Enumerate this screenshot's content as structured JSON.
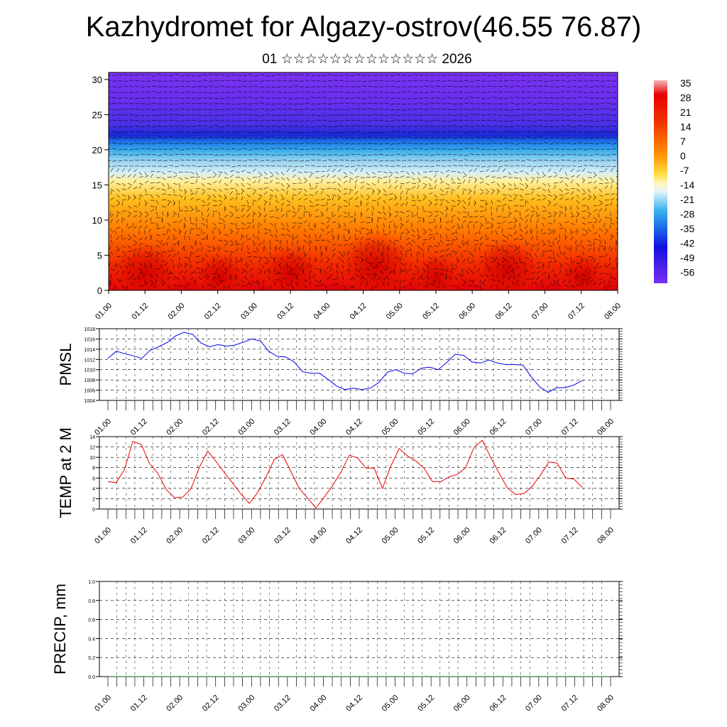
{
  "title": "Kazhydromet for Algazy-ostrov(46.55 76.87)",
  "subtitle": "01 ☆☆☆☆☆☆☆☆☆☆☆☆☆ 2026",
  "time_labels": [
    "01.00",
    "01.12",
    "02.00",
    "02.12",
    "03.00",
    "03.12",
    "04.00",
    "04.12",
    "05.00",
    "05.12",
    "06.00",
    "06.12",
    "07.00",
    "07.12",
    "08.00"
  ],
  "colors": {
    "pmsl_line": "#0000ee",
    "temp_line": "#ee0000",
    "precip_line": "#006400",
    "grid": "#000000"
  },
  "chart_data": [
    {
      "type": "heatmap",
      "name": "upper-air temperature and wind cross-section",
      "ylim": [
        0,
        31
      ],
      "y_ticks": [
        "0",
        "5",
        "10",
        "15",
        "20",
        "25",
        "30"
      ],
      "colorbar_labels": [
        "35",
        "28",
        "21",
        "14",
        "7",
        "0",
        "-7",
        "-14",
        "-21",
        "-28",
        "-35",
        "-42",
        "-49",
        "-56"
      ],
      "colorbar_range": [
        -63,
        38
      ],
      "x_categories": [
        "01.00",
        "01.12",
        "02.00",
        "02.12",
        "03.00",
        "03.12",
        "04.00",
        "04.12",
        "05.00",
        "05.12",
        "06.00",
        "06.12",
        "07.00",
        "07.12",
        "08.00"
      ]
    },
    {
      "type": "line",
      "ylabel": "PMSL",
      "ylim": [
        1004,
        1018
      ],
      "y_ticks": [
        "1004",
        "1006",
        "1008",
        "1010",
        "1012",
        "1014",
        "1016",
        "1018"
      ],
      "series": [
        {
          "name": "PMSL",
          "values": [
            1012.2,
            1013.6,
            1013.1,
            1012.7,
            1012.2,
            1013.8,
            1014.5,
            1015.3,
            1016.6,
            1017.3,
            1016.9,
            1015.2,
            1014.5,
            1014.9,
            1014.6,
            1014.8,
            1015.4,
            1016.0,
            1015.6,
            1013.6,
            1012.6,
            1012.5,
            1011.5,
            1009.6,
            1009.3,
            1009.3,
            1008.1,
            1006.8,
            1006.1,
            1006.4,
            1006.1,
            1006.4,
            1007.5,
            1009.5,
            1010.0,
            1009.3,
            1009.2,
            1010.3,
            1010.5,
            1010.0,
            1011.4,
            1013.0,
            1012.8,
            1011.5,
            1011.3,
            1011.9,
            1011.3,
            1011.0,
            1011.0,
            1010.9,
            1008.6,
            1006.6,
            1005.6,
            1006.5,
            1006.5,
            1007.0,
            1007.9
          ]
        }
      ]
    },
    {
      "type": "line",
      "ylabel": "TEMP at 2 M",
      "ylim": [
        0,
        14
      ],
      "y_ticks": [
        "0",
        "2",
        "4",
        "6",
        "8",
        "10",
        "12",
        "14"
      ],
      "series": [
        {
          "name": "TEMP at 2 M",
          "values": [
            5.3,
            5.1,
            7.7,
            13.1,
            12.5,
            8.8,
            6.9,
            3.8,
            2.2,
            2.3,
            4.0,
            8.1,
            11.2,
            9.2,
            7.0,
            5.0,
            2.9,
            1.1,
            3.2,
            6.2,
            9.6,
            10.5,
            7.2,
            4.0,
            2.1,
            0.2,
            2.3,
            4.5,
            7.1,
            10.4,
            9.9,
            7.9,
            7.9,
            4.0,
            8.3,
            11.7,
            10.3,
            9.3,
            7.9,
            5.3,
            5.3,
            6.2,
            6.7,
            8.0,
            11.9,
            13.3,
            10.0,
            7.0,
            4.1,
            2.8,
            3.0,
            4.4,
            6.6,
            9.1,
            8.9,
            6.0,
            5.8,
            4.2
          ]
        }
      ]
    },
    {
      "type": "line",
      "ylabel": "PRECIP, mm",
      "ylim": [
        0,
        1.0
      ],
      "y_ticks": [
        "0.0",
        "0.2",
        "0.4",
        "0.6",
        "0.8",
        "1.0"
      ],
      "series": [
        {
          "name": "PRECIP",
          "values": [
            0,
            0,
            0,
            0,
            0,
            0,
            0,
            0,
            0,
            0,
            0,
            0,
            0,
            0,
            0,
            0,
            0,
            0,
            0,
            0,
            0,
            0,
            0,
            0,
            0,
            0,
            0,
            0,
            0,
            0,
            0,
            0,
            0,
            0,
            0,
            0,
            0,
            0,
            0,
            0,
            0,
            0,
            0,
            0,
            0,
            0,
            0,
            0,
            0,
            0,
            0,
            0,
            0,
            0,
            0,
            0,
            0
          ]
        }
      ]
    }
  ]
}
